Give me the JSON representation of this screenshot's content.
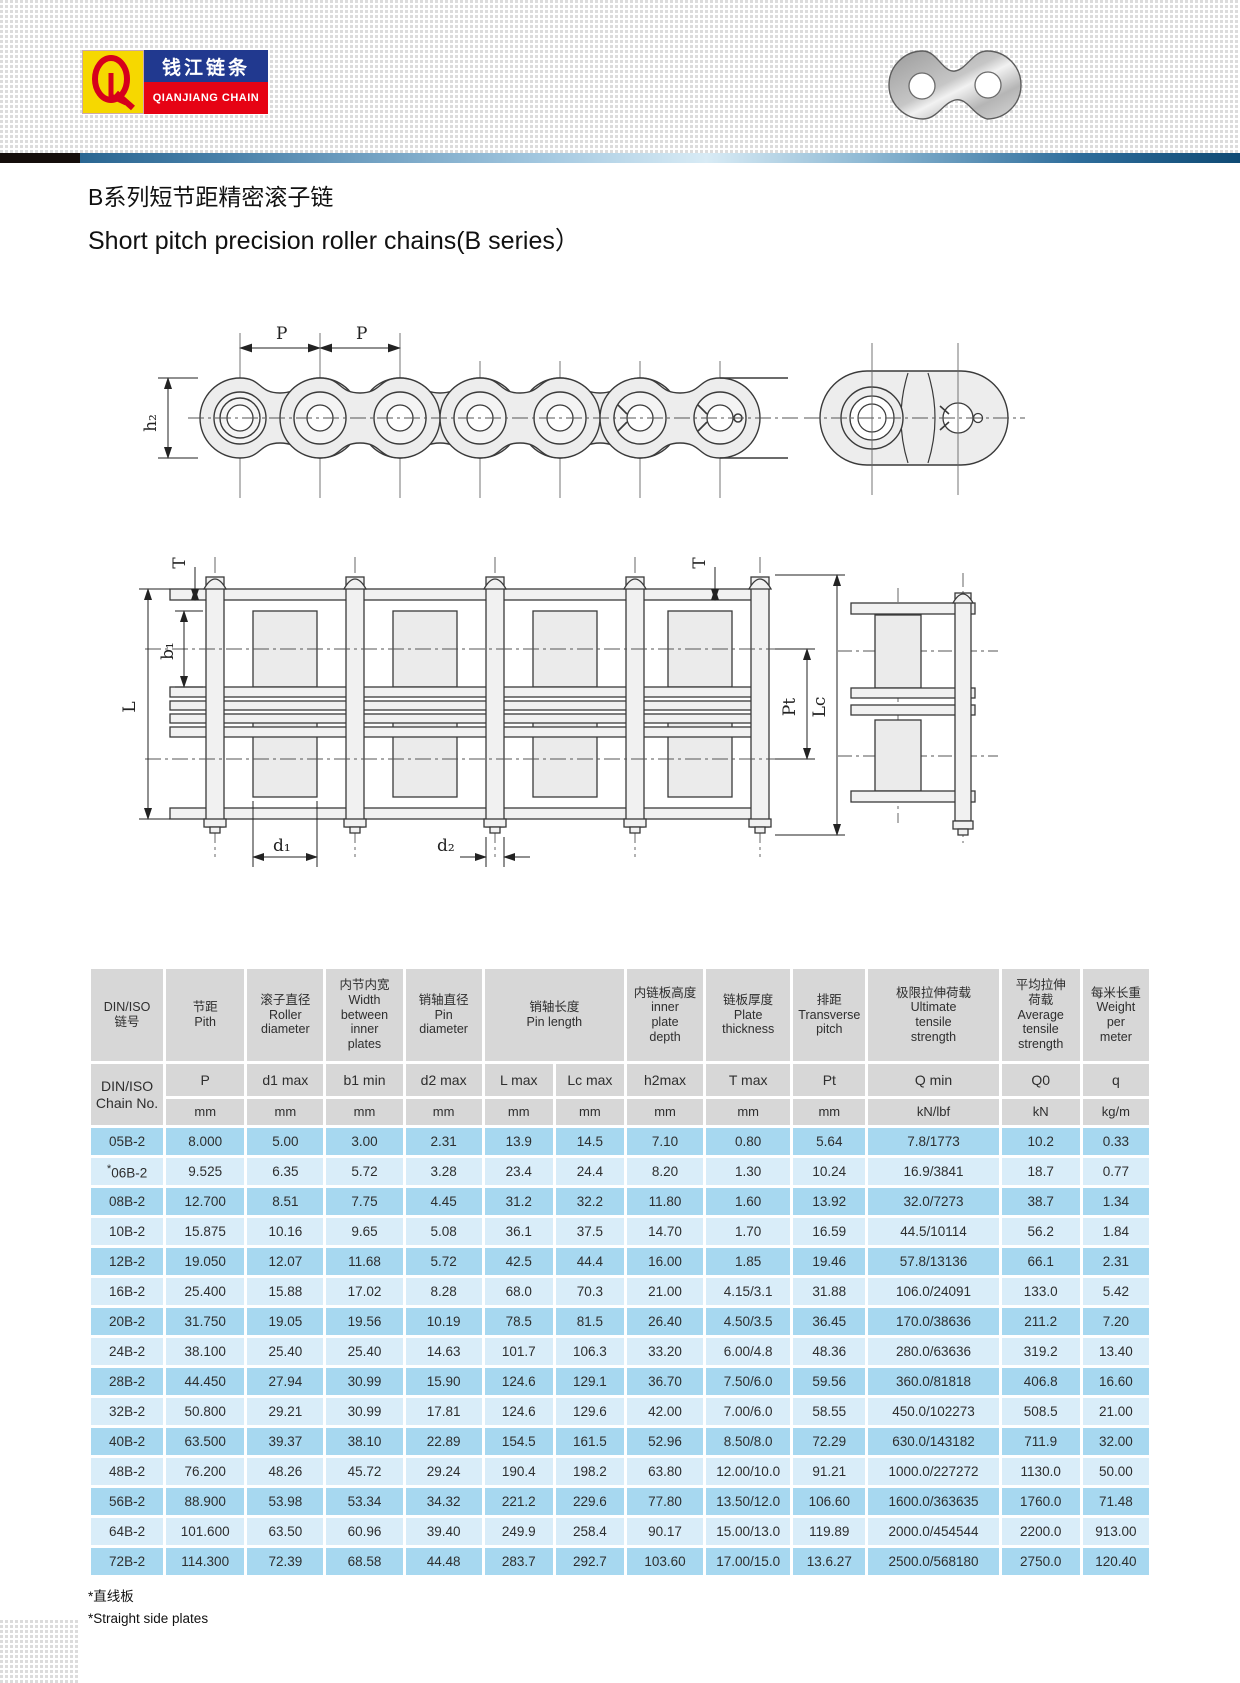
{
  "logo": {
    "monogram": "QL",
    "name_zh": "钱江链条",
    "name_en": "QIANJIANG CHAIN"
  },
  "page": {
    "title_zh": "B系列短节距精密滚子链",
    "title_en": "Short pitch precision roller chains(B series）"
  },
  "diagram_side_view": {
    "labels": {
      "p1": "P",
      "p2": "P",
      "h2": "h₂"
    }
  },
  "diagram_plan_view": {
    "labels": {
      "T_left": "T",
      "b1": "b₁",
      "L": "L",
      "d1": "d₁",
      "d2": "d₂",
      "Pt": "Pt",
      "Lc": "Lc",
      "T_right": "T"
    }
  },
  "table": {
    "header_row1": [
      "DIN/ISO\n链号",
      "节距\nPith",
      "滚子直径\nRoller\ndiameter",
      "内节内宽\nWidth\nbetween\ninner\nplates",
      "销轴直径\nPin\ndiameter",
      "销轴长度\nPin length",
      "内链板高度\ninner\nplate\ndepth",
      "链板厚度\nPlate\nthickness",
      "排距\nTransverse\npitch",
      "极限拉伸荷载\nUltimate\ntensile\nstrength",
      "平均拉伸\n荷载\nAverage\ntensile\nstrength",
      "每米长重\nWeight\nper\nmeter"
    ],
    "header_row2": [
      "DIN/ISO\nChain No.",
      "P",
      "d1 max",
      "b1 min",
      "d2 max",
      "L max",
      "Lc max",
      "h2max",
      "T max",
      "Pt",
      "Q min",
      "Q0",
      "q"
    ],
    "units": [
      "mm",
      "mm",
      "mm",
      "mm",
      "mm",
      "mm",
      "mm",
      "mm",
      "mm",
      "kN/lbf",
      "kN",
      "kg/m"
    ],
    "rows": [
      {
        "no": "05B-2",
        "values": [
          "8.000",
          "5.00",
          "3.00",
          "2.31",
          "13.9",
          "14.5",
          "7.10",
          "0.80",
          "5.64",
          "7.8/1773",
          "10.2",
          "0.33"
        ]
      },
      {
        "no": "*06B-2",
        "values": [
          "9.525",
          "6.35",
          "5.72",
          "3.28",
          "23.4",
          "24.4",
          "8.20",
          "1.30",
          "10.24",
          "16.9/3841",
          "18.7",
          "0.77"
        ]
      },
      {
        "no": "08B-2",
        "values": [
          "12.700",
          "8.51",
          "7.75",
          "4.45",
          "31.2",
          "32.2",
          "11.80",
          "1.60",
          "13.92",
          "32.0/7273",
          "38.7",
          "1.34"
        ]
      },
      {
        "no": "10B-2",
        "values": [
          "15.875",
          "10.16",
          "9.65",
          "5.08",
          "36.1",
          "37.5",
          "14.70",
          "1.70",
          "16.59",
          "44.5/10114",
          "56.2",
          "1.84"
        ]
      },
      {
        "no": "12B-2",
        "values": [
          "19.050",
          "12.07",
          "11.68",
          "5.72",
          "42.5",
          "44.4",
          "16.00",
          "1.85",
          "19.46",
          "57.8/13136",
          "66.1",
          "2.31"
        ]
      },
      {
        "no": "16B-2",
        "values": [
          "25.400",
          "15.88",
          "17.02",
          "8.28",
          "68.0",
          "70.3",
          "21.00",
          "4.15/3.1",
          "31.88",
          "106.0/24091",
          "133.0",
          "5.42"
        ]
      },
      {
        "no": "20B-2",
        "values": [
          "31.750",
          "19.05",
          "19.56",
          "10.19",
          "78.5",
          "81.5",
          "26.40",
          "4.50/3.5",
          "36.45",
          "170.0/38636",
          "211.2",
          "7.20"
        ]
      },
      {
        "no": "24B-2",
        "values": [
          "38.100",
          "25.40",
          "25.40",
          "14.63",
          "101.7",
          "106.3",
          "33.20",
          "6.00/4.8",
          "48.36",
          "280.0/63636",
          "319.2",
          "13.40"
        ]
      },
      {
        "no": "28B-2",
        "values": [
          "44.450",
          "27.94",
          "30.99",
          "15.90",
          "124.6",
          "129.1",
          "36.70",
          "7.50/6.0",
          "59.56",
          "360.0/81818",
          "406.8",
          "16.60"
        ]
      },
      {
        "no": "32B-2",
        "values": [
          "50.800",
          "29.21",
          "30.99",
          "17.81",
          "124.6",
          "129.6",
          "42.00",
          "7.00/6.0",
          "58.55",
          "450.0/102273",
          "508.5",
          "21.00"
        ]
      },
      {
        "no": "40B-2",
        "values": [
          "63.500",
          "39.37",
          "38.10",
          "22.89",
          "154.5",
          "161.5",
          "52.96",
          "8.50/8.0",
          "72.29",
          "630.0/143182",
          "711.9",
          "32.00"
        ]
      },
      {
        "no": "48B-2",
        "values": [
          "76.200",
          "48.26",
          "45.72",
          "29.24",
          "190.4",
          "198.2",
          "63.80",
          "12.00/10.0",
          "91.21",
          "1000.0/227272",
          "1130.0",
          "50.00"
        ]
      },
      {
        "no": "56B-2",
        "values": [
          "88.900",
          "53.98",
          "53.34",
          "34.32",
          "221.2",
          "229.6",
          "77.80",
          "13.50/12.0",
          "106.60",
          "1600.0/363635",
          "1760.0",
          "71.48"
        ]
      },
      {
        "no": "64B-2",
        "values": [
          "101.600",
          "63.50",
          "60.96",
          "39.40",
          "249.9",
          "258.4",
          "90.17",
          "15.00/13.0",
          "119.89",
          "2000.0/454544",
          "2200.0",
          "913.00"
        ]
      },
      {
        "no": "72B-2",
        "values": [
          "114.300",
          "72.39",
          "68.58",
          "44.48",
          "283.7",
          "292.7",
          "103.60",
          "17.00/15.0",
          "13.6.27",
          "2500.0/568180",
          "2750.0",
          "120.40"
        ]
      }
    ]
  },
  "footnotes": {
    "zh": "*直线板",
    "en": "*Straight side plates"
  },
  "colors": {
    "row_blue": "#a7d8f0",
    "row_light_blue": "#d9edf9",
    "header_gray": "#d7d7d7",
    "logo_blue": "#21398f",
    "logo_red": "#e60314",
    "logo_yellow": "#f6d800"
  }
}
